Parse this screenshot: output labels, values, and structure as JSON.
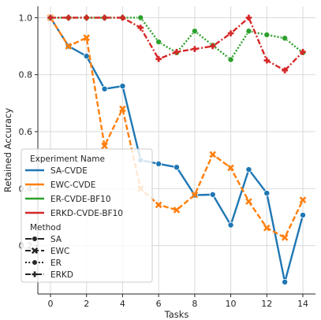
{
  "chart_data": {
    "type": "line",
    "xlabel": "Tasks",
    "ylabel": "Retained Accuracy",
    "xlim": [
      -0.7,
      14.7
    ],
    "ylim": [
      0.03,
      1.04
    ],
    "xticks": [
      0,
      2,
      4,
      6,
      8,
      10,
      12,
      14
    ],
    "yticks": [
      0.2,
      0.4,
      0.6,
      0.8,
      1.0
    ],
    "ytick_labels": [
      "0.2",
      "0.4",
      "0.6",
      "0.8",
      "1.0"
    ],
    "grid": true,
    "x": [
      0,
      1,
      2,
      3,
      4,
      5,
      6,
      7,
      8,
      9,
      10,
      11,
      12,
      13,
      14
    ],
    "series": [
      {
        "name": "SA-CVDE",
        "method": "SA",
        "color": "#1f77b4",
        "dash": "solid",
        "marker": "circle",
        "values": [
          1.0,
          0.9,
          0.865,
          0.75,
          0.76,
          0.5,
          0.487,
          0.475,
          0.377,
          0.379,
          0.272,
          0.467,
          0.384,
          0.072,
          0.307
        ]
      },
      {
        "name": "EWC-CVDE",
        "method": "EWC",
        "color": "#ff7f0e",
        "dash": "dashed",
        "marker": "x",
        "values": [
          1.0,
          0.9,
          0.93,
          0.55,
          0.68,
          0.4,
          0.343,
          0.325,
          0.378,
          0.52,
          0.473,
          0.355,
          0.262,
          0.228,
          0.36
        ]
      },
      {
        "name": "ER-CVDE-BF10",
        "method": "ER",
        "color": "#2ca02c",
        "dash": "dotted",
        "marker": "circle",
        "values": [
          1.0,
          1.0,
          1.0,
          1.0,
          1.0,
          1.0,
          0.915,
          0.877,
          0.953,
          0.903,
          0.853,
          0.953,
          0.94,
          0.928,
          0.877
        ]
      },
      {
        "name": "ERKD-CVDE-BF10",
        "method": "ERKD",
        "color": "#d62728",
        "dash": "dashdot",
        "marker": "plus",
        "values": [
          1.0,
          1.0,
          1.0,
          1.0,
          1.0,
          0.965,
          0.855,
          0.88,
          0.89,
          0.9,
          0.945,
          1.0,
          0.85,
          0.815,
          0.88
        ]
      }
    ],
    "legend": {
      "placement": "lower-left",
      "title_experiment": "Experiment Name",
      "title_method": "Method",
      "methods": [
        {
          "label": "SA",
          "dash": "solid",
          "marker": "circle"
        },
        {
          "label": "EWC",
          "dash": "dashed",
          "marker": "x"
        },
        {
          "label": "ER",
          "dash": "dotted",
          "marker": "circle"
        },
        {
          "label": "ERKD",
          "dash": "dashdot",
          "marker": "plus"
        }
      ]
    },
    "grid_color": "#d9d9d9",
    "axis_color": "#262626"
  }
}
